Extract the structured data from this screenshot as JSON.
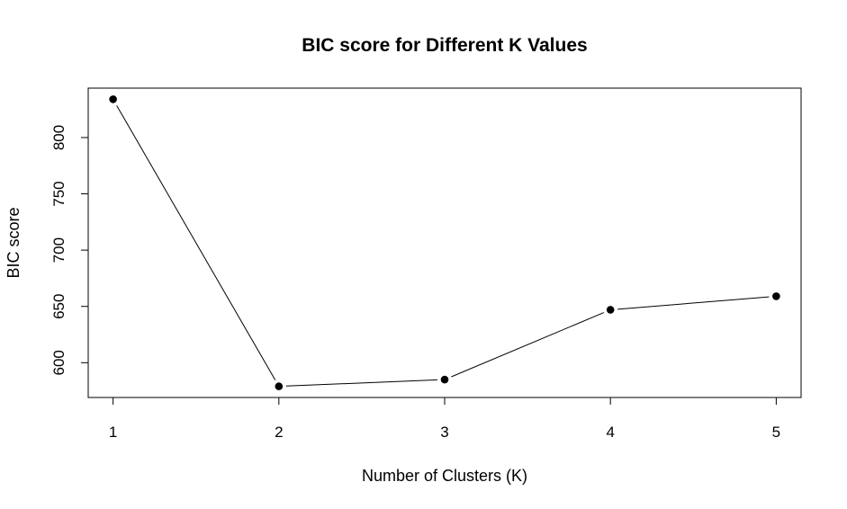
{
  "chart_data": {
    "type": "line",
    "title": "BIC score for Different K Values",
    "xlabel": "Number of Clusters (K)",
    "ylabel": "BIC score",
    "x": [
      1,
      2,
      3,
      4,
      5
    ],
    "series": [
      {
        "values": [
          834,
          579,
          585,
          647,
          659
        ]
      }
    ],
    "xticks": [
      "1",
      "2",
      "3",
      "4",
      "5"
    ],
    "yticks": [
      "600",
      "650",
      "700",
      "750",
      "800"
    ],
    "xlim": [
      0.85,
      5.15
    ],
    "ylim": [
      569.1,
      843.9
    ],
    "grid": false,
    "legend": "none",
    "marker": "filled-circle",
    "line_color": "#000000",
    "marker_color": "#000000"
  }
}
